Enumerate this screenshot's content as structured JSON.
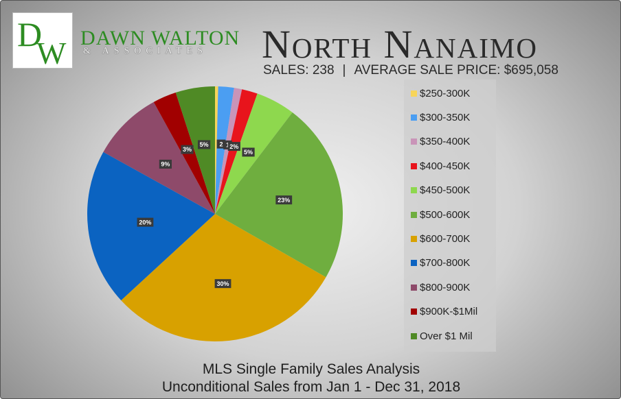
{
  "branding": {
    "logo_letters": "DW",
    "name": "DAWN WALTON",
    "subtitle": "& ASSOCIATES"
  },
  "header": {
    "title": "North Nanaimo",
    "sales": "SALES: 238",
    "separator": "|",
    "average": "AVERAGE SALE PRICE: $695,058"
  },
  "footer": {
    "line1": "MLS Single Family Sales Analysis",
    "line2": "Unconditional Sales from Jan 1 - Dec 31, 2018"
  },
  "chart_data": {
    "type": "pie",
    "title": "North Nanaimo",
    "legend_position": "right",
    "categories": [
      "$250-300K",
      "$300-350K",
      "$350-400K",
      "$400-450K",
      "$450-500K",
      "$500-600K",
      "$600-700K",
      "$700-800K",
      "$800-900K",
      "$900K-$1Mil",
      "Over $1 Mil"
    ],
    "values": [
      0.4,
      2,
      1,
      2,
      5,
      23,
      30,
      20,
      9,
      3,
      5
    ],
    "data_labels": [
      "",
      "2",
      "1",
      "2%",
      "5%",
      "23%",
      "30%",
      "20%",
      "9%",
      "3%",
      "5%"
    ],
    "colors": [
      "#f7d55a",
      "#4b9ef2",
      "#c994b8",
      "#e8141c",
      "#8ed84e",
      "#6fae3f",
      "#d8a100",
      "#0b63c1",
      "#8e4a6a",
      "#a10000",
      "#4f8a25"
    ]
  }
}
